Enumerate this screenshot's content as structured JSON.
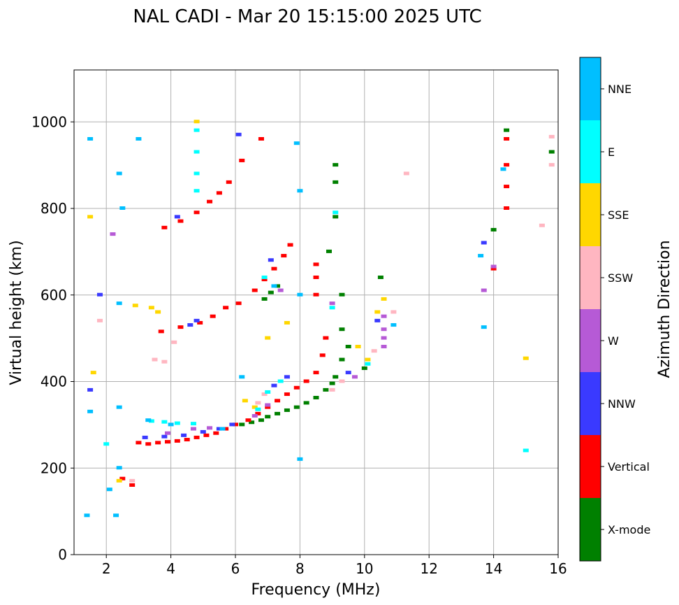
{
  "chart_data": {
    "type": "scatter",
    "title": "NAL CADI - Mar 20 15:15:00 2025 UTC",
    "xlabel": "Frequency (MHz)",
    "ylabel": "Virtual height (km)",
    "xlim": [
      1,
      16
    ],
    "ylim": [
      0,
      1120
    ],
    "xticks": [
      "2",
      "4",
      "6",
      "8",
      "10",
      "12",
      "14",
      "16"
    ],
    "xtick_values": [
      2,
      4,
      6,
      8,
      10,
      12,
      14,
      16
    ],
    "yticks": [
      "0",
      "200",
      "400",
      "600",
      "800",
      "1000"
    ],
    "ytick_values": [
      0,
      200,
      400,
      600,
      800,
      1000
    ],
    "grid": true,
    "colorbar": {
      "label": "Azimuth Direction",
      "categories": [
        {
          "name": "X-mode",
          "color": "#008000"
        },
        {
          "name": "Vertical",
          "color": "#ff0000"
        },
        {
          "name": "NNW",
          "color": "#3a3aff"
        },
        {
          "name": "W",
          "color": "#b65ad6"
        },
        {
          "name": "SSW",
          "color": "#ffb6c1"
        },
        {
          "name": "SSE",
          "color": "#ffd700"
        },
        {
          "name": "E",
          "color": "#00ffff"
        },
        {
          "name": "NNE",
          "color": "#00bfff"
        }
      ]
    },
    "series": [
      {
        "name": "X-mode",
        "points": [
          [
            6.2,
            300
          ],
          [
            6.5,
            305
          ],
          [
            6.8,
            310
          ],
          [
            7.0,
            318
          ],
          [
            7.3,
            325
          ],
          [
            7.6,
            333
          ],
          [
            7.9,
            340
          ],
          [
            8.2,
            350
          ],
          [
            8.5,
            362
          ],
          [
            8.8,
            380
          ],
          [
            9.0,
            395
          ],
          [
            9.1,
            410
          ],
          [
            9.3,
            450
          ],
          [
            9.5,
            480
          ],
          [
            8.9,
            700
          ],
          [
            9.1,
            780
          ],
          [
            9.1,
            860
          ],
          [
            9.1,
            900
          ],
          [
            6.9,
            590
          ],
          [
            7.1,
            605
          ],
          [
            7.3,
            620
          ],
          [
            10.5,
            640
          ],
          [
            10.0,
            430
          ],
          [
            14.0,
            750
          ],
          [
            14.4,
            980
          ],
          [
            15.8,
            930
          ],
          [
            9.3,
            600
          ],
          [
            9.3,
            520
          ]
        ]
      },
      {
        "name": "Vertical",
        "points": [
          [
            2.5,
            175
          ],
          [
            2.8,
            160
          ],
          [
            3.0,
            258
          ],
          [
            3.3,
            255
          ],
          [
            3.6,
            258
          ],
          [
            3.9,
            260
          ],
          [
            4.2,
            262
          ],
          [
            4.5,
            265
          ],
          [
            4.8,
            270
          ],
          [
            5.1,
            275
          ],
          [
            5.4,
            280
          ],
          [
            5.7,
            290
          ],
          [
            6.0,
            300
          ],
          [
            6.4,
            310
          ],
          [
            6.7,
            325
          ],
          [
            7.0,
            340
          ],
          [
            7.3,
            355
          ],
          [
            7.6,
            370
          ],
          [
            7.9,
            385
          ],
          [
            8.2,
            400
          ],
          [
            8.5,
            420
          ],
          [
            8.7,
            460
          ],
          [
            8.8,
            500
          ],
          [
            8.5,
            600
          ],
          [
            8.5,
            640
          ],
          [
            8.5,
            670
          ],
          [
            3.8,
            755
          ],
          [
            4.3,
            770
          ],
          [
            4.8,
            790
          ],
          [
            5.2,
            815
          ],
          [
            5.5,
            835
          ],
          [
            5.8,
            860
          ],
          [
            6.2,
            910
          ],
          [
            6.8,
            960
          ],
          [
            3.7,
            515
          ],
          [
            4.3,
            525
          ],
          [
            4.9,
            535
          ],
          [
            5.3,
            550
          ],
          [
            5.7,
            570
          ],
          [
            6.1,
            580
          ],
          [
            6.6,
            610
          ],
          [
            6.9,
            635
          ],
          [
            7.2,
            660
          ],
          [
            7.5,
            690
          ],
          [
            7.7,
            715
          ],
          [
            14.4,
            800
          ],
          [
            14.4,
            850
          ],
          [
            14.4,
            900
          ],
          [
            14.4,
            960
          ],
          [
            14.0,
            660
          ]
        ]
      },
      {
        "name": "NNW",
        "points": [
          [
            3.2,
            270
          ],
          [
            3.8,
            272
          ],
          [
            4.4,
            275
          ],
          [
            5.0,
            283
          ],
          [
            5.5,
            290
          ],
          [
            5.9,
            300
          ],
          [
            4.6,
            530
          ],
          [
            4.8,
            540
          ],
          [
            7.2,
            390
          ],
          [
            7.6,
            410
          ],
          [
            1.5,
            380
          ],
          [
            1.8,
            600
          ],
          [
            4.2,
            780
          ],
          [
            7.1,
            680
          ],
          [
            13.7,
            720
          ],
          [
            6.1,
            970
          ],
          [
            9.5,
            420
          ],
          [
            10.4,
            540
          ]
        ]
      },
      {
        "name": "W",
        "points": [
          [
            4.7,
            290
          ],
          [
            5.2,
            292
          ],
          [
            3.9,
            280
          ],
          [
            6.6,
            320
          ],
          [
            7.0,
            345
          ],
          [
            9.0,
            580
          ],
          [
            10.6,
            480
          ],
          [
            10.6,
            500
          ],
          [
            10.6,
            520
          ],
          [
            10.6,
            550
          ],
          [
            9.7,
            410
          ],
          [
            2.2,
            740
          ],
          [
            13.7,
            610
          ],
          [
            14.0,
            665
          ],
          [
            7.4,
            610
          ]
        ]
      },
      {
        "name": "SSW",
        "points": [
          [
            3.5,
            450
          ],
          [
            3.8,
            445
          ],
          [
            2.8,
            170
          ],
          [
            4.1,
            490
          ],
          [
            6.7,
            350
          ],
          [
            6.9,
            370
          ],
          [
            9.0,
            380
          ],
          [
            10.3,
            470
          ],
          [
            10.9,
            560
          ],
          [
            9.3,
            400
          ],
          [
            11.3,
            880
          ],
          [
            15.5,
            760
          ],
          [
            15.8,
            900
          ],
          [
            15.8,
            965
          ],
          [
            1.8,
            540
          ]
        ]
      },
      {
        "name": "SSE",
        "points": [
          [
            1.6,
            420
          ],
          [
            2.4,
            170
          ],
          [
            2.9,
            575
          ],
          [
            3.4,
            570
          ],
          [
            3.6,
            560
          ],
          [
            4.8,
            1000
          ],
          [
            6.3,
            355
          ],
          [
            6.6,
            340
          ],
          [
            7.0,
            500
          ],
          [
            7.6,
            535
          ],
          [
            9.8,
            480
          ],
          [
            10.1,
            450
          ],
          [
            10.4,
            560
          ],
          [
            10.6,
            590
          ],
          [
            15.0,
            453
          ],
          [
            1.5,
            780
          ]
        ]
      },
      {
        "name": "E",
        "points": [
          [
            3.4,
            308
          ],
          [
            3.8,
            306
          ],
          [
            4.2,
            303
          ],
          [
            4.7,
            302
          ],
          [
            4.8,
            840
          ],
          [
            4.8,
            880
          ],
          [
            4.8,
            930
          ],
          [
            4.8,
            980
          ],
          [
            6.7,
            335
          ],
          [
            7.0,
            375
          ],
          [
            7.4,
            400
          ],
          [
            9.0,
            570
          ],
          [
            9.1,
            790
          ],
          [
            15.0,
            240
          ],
          [
            10.1,
            440
          ],
          [
            6.9,
            640
          ],
          [
            2.0,
            255
          ]
        ]
      },
      {
        "name": "NNE",
        "points": [
          [
            1.4,
            90
          ],
          [
            1.5,
            330
          ],
          [
            2.1,
            150
          ],
          [
            2.3,
            90
          ],
          [
            2.4,
            200
          ],
          [
            2.4,
            340
          ],
          [
            2.4,
            580
          ],
          [
            2.4,
            880
          ],
          [
            2.5,
            800
          ],
          [
            3.3,
            310
          ],
          [
            4.0,
            300
          ],
          [
            5.6,
            290
          ],
          [
            6.2,
            410
          ],
          [
            7.2,
            620
          ],
          [
            8.0,
            220
          ],
          [
            8.0,
            600
          ],
          [
            8.0,
            840
          ],
          [
            10.9,
            530
          ],
          [
            13.6,
            690
          ],
          [
            13.7,
            525
          ],
          [
            14.3,
            890
          ],
          [
            1.5,
            960
          ],
          [
            3.0,
            960
          ],
          [
            7.9,
            950
          ]
        ]
      }
    ]
  }
}
